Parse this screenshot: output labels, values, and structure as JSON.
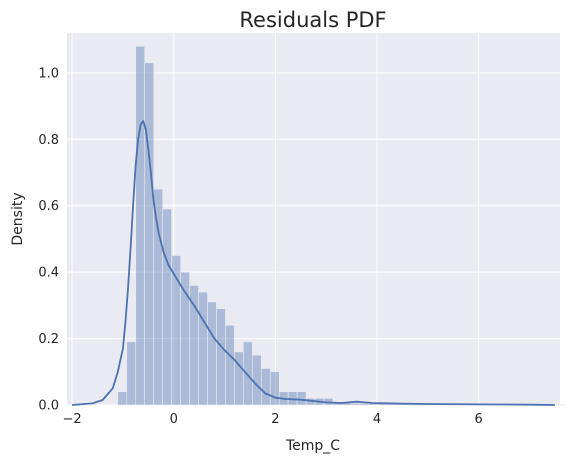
{
  "chart_data": {
    "type": "histogram",
    "title": "Residuals PDF",
    "xlabel": "Temp_C",
    "ylabel": "Density",
    "xlim": [
      -2.1,
      7.6
    ],
    "ylim": [
      0,
      1.12
    ],
    "x_ticks": [
      -2,
      0,
      2,
      4,
      6
    ],
    "x_tick_labels": [
      "−2",
      "0",
      "2",
      "4",
      "6"
    ],
    "y_ticks": [
      0.0,
      0.2,
      0.4,
      0.6,
      0.8,
      1.0
    ],
    "y_tick_labels": [
      "0.0",
      "0.2",
      "0.4",
      "0.6",
      "0.8",
      "1.0"
    ],
    "grid": true,
    "colors": {
      "background": "#eaeaf2",
      "grid": "#ffffff",
      "bar": "#4c72b0",
      "bar_opacity": 0.4,
      "kde_line": "#4c72b0"
    },
    "histogram": {
      "bin_start": -1.1,
      "bin_width": 0.1764,
      "densities": [
        0.04,
        0.19,
        1.08,
        1.03,
        0.65,
        0.59,
        0.45,
        0.4,
        0.36,
        0.34,
        0.31,
        0.29,
        0.24,
        0.16,
        0.19,
        0.15,
        0.11,
        0.1,
        0.04,
        0.04,
        0.04,
        0.02,
        0.02,
        0.02,
        0.01,
        0.01,
        0.005,
        0.005,
        0.004,
        0.004,
        0.004,
        0.004,
        0.003,
        0.003,
        0.003,
        0.003,
        0.002,
        0.002,
        0.002,
        0.002,
        0.002,
        0.002,
        0.002,
        0.002,
        0.002,
        0.001,
        0.001,
        0.001,
        0.001,
        0.001
      ]
    },
    "kde": {
      "x": [
        -2.0,
        -1.6,
        -1.4,
        -1.2,
        -1.1,
        -1.0,
        -0.95,
        -0.9,
        -0.85,
        -0.8,
        -0.75,
        -0.7,
        -0.65,
        -0.6,
        -0.55,
        -0.5,
        -0.45,
        -0.4,
        -0.35,
        -0.3,
        -0.2,
        -0.1,
        0.0,
        0.1,
        0.2,
        0.4,
        0.6,
        0.8,
        1.0,
        1.2,
        1.4,
        1.6,
        1.8,
        2.0,
        2.2,
        2.5,
        3.0,
        3.3,
        3.6,
        3.9,
        4.5,
        5.0,
        6.0,
        7.0,
        7.5
      ],
      "y": [
        0.0,
        0.005,
        0.015,
        0.05,
        0.1,
        0.17,
        0.25,
        0.35,
        0.47,
        0.6,
        0.72,
        0.8,
        0.845,
        0.855,
        0.83,
        0.77,
        0.7,
        0.62,
        0.565,
        0.52,
        0.46,
        0.42,
        0.395,
        0.37,
        0.345,
        0.3,
        0.25,
        0.2,
        0.165,
        0.135,
        0.1,
        0.065,
        0.035,
        0.022,
        0.018,
        0.016,
        0.008,
        0.006,
        0.01,
        0.006,
        0.004,
        0.003,
        0.002,
        0.001,
        0.0
      ]
    }
  }
}
